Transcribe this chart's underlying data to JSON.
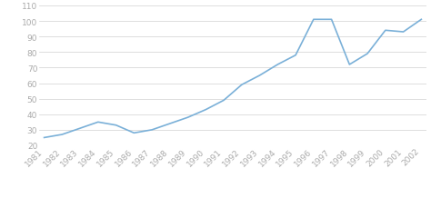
{
  "years": [
    1981,
    1982,
    1983,
    1984,
    1985,
    1986,
    1987,
    1988,
    1989,
    1990,
    1991,
    1992,
    1993,
    1994,
    1995,
    1996,
    1997,
    1998,
    1999,
    2000,
    2001,
    2002
  ],
  "values": [
    25,
    27,
    31,
    35,
    33,
    28,
    30,
    34,
    38,
    43,
    49,
    59,
    65,
    72,
    78,
    101,
    101,
    72,
    79,
    94,
    93,
    101
  ],
  "line_color": "#7ab0d8",
  "line_width": 1.2,
  "background_color": "#ffffff",
  "grid_color": "#d0d0d0",
  "ylim": [
    20,
    110
  ],
  "yticks": [
    20,
    30,
    40,
    50,
    60,
    70,
    80,
    90,
    100,
    110
  ],
  "tick_fontsize": 6.5,
  "tick_color": "#aaaaaa",
  "xlabel_rotation": 45
}
